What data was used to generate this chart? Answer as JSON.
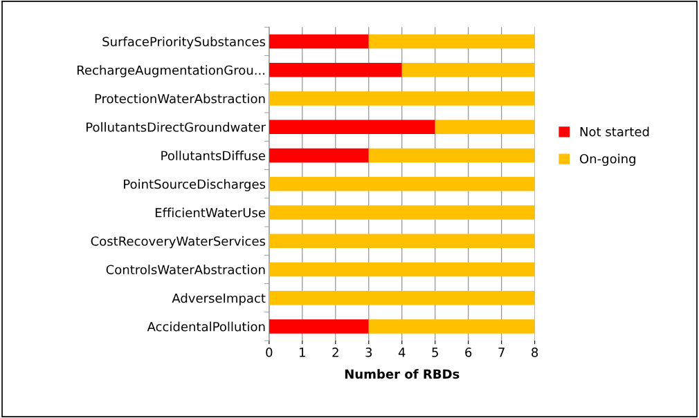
{
  "chart_data": {
    "type": "bar",
    "orientation": "horizontal",
    "stacked": true,
    "xlabel": "Number of RBDs",
    "categories": [
      "SurfacePrioritySubstances",
      "RechargeAugmentationGrou...",
      "ProtectionWaterAbstraction",
      "PollutantsDirectGroundwater",
      "PollutantsDiffuse",
      "PointSourceDischarges",
      "EfficientWaterUse",
      "CostRecoveryWaterServices",
      "ControlsWaterAbstraction",
      "AdverseImpact",
      "AccidentalPollution"
    ],
    "series": [
      {
        "name": "Not started",
        "color": "#ff0000",
        "values": [
          3,
          4,
          0,
          5,
          3,
          0,
          0,
          0,
          0,
          0,
          3
        ]
      },
      {
        "name": "On-going",
        "color": "#ffc000",
        "values": [
          5,
          4,
          8,
          3,
          5,
          8,
          8,
          8,
          8,
          8,
          5
        ]
      }
    ],
    "xlim": [
      0,
      8
    ],
    "xticks": [
      0,
      1,
      2,
      3,
      4,
      5,
      6,
      7,
      8
    ],
    "grid": "x",
    "legend": "right"
  }
}
